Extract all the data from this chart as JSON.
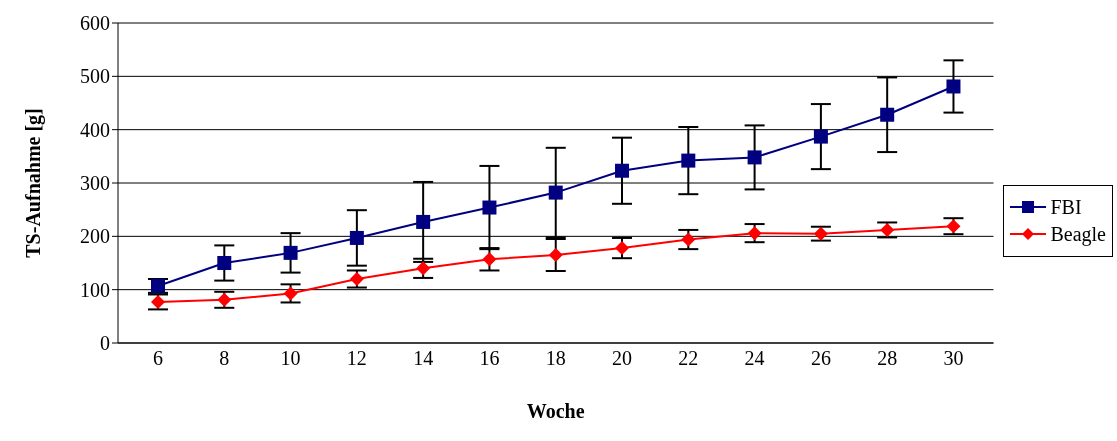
{
  "chart_data": {
    "type": "line",
    "xlabel": "Woche",
    "ylabel": "TS-Aufnahme [g]",
    "categories": [
      "6",
      "8",
      "10",
      "12",
      "14",
      "16",
      "18",
      "20",
      "22",
      "24",
      "26",
      "28",
      "30"
    ],
    "series": [
      {
        "name": "FBI",
        "color": "#000080",
        "marker": "square",
        "values": [
          107,
          150,
          169,
          197,
          227,
          254,
          282,
          323,
          342,
          348,
          387,
          428,
          481
        ],
        "errors": [
          13,
          33,
          37,
          52,
          75,
          78,
          84,
          62,
          63,
          60,
          61,
          70,
          49
        ]
      },
      {
        "name": "Beagle",
        "color": "#ff0000",
        "marker": "diamond",
        "values": [
          77,
          81,
          93,
          120,
          140,
          157,
          165,
          178,
          194,
          206,
          205,
          212,
          219
        ],
        "errors": [
          14,
          15,
          17,
          16,
          18,
          21,
          30,
          19,
          18,
          17,
          13,
          14,
          15
        ]
      }
    ],
    "ylim": [
      0,
      600
    ],
    "yticks": [
      0,
      100,
      200,
      300,
      400,
      500,
      600
    ],
    "grid": "y",
    "legend": "right",
    "line_style": "solid"
  }
}
